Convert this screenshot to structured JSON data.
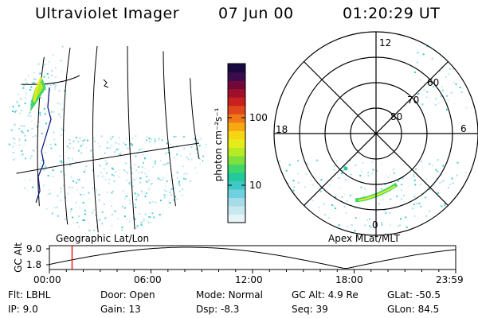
{
  "header": {
    "instrument": "Ultraviolet Imager",
    "date": "07 Jun 00",
    "time": "01:20:29 UT"
  },
  "left_panel": {
    "label": "Geographic Lat/Lon"
  },
  "right_panel": {
    "label": "Apex MLat/MLT",
    "mlt_labels": {
      "top": "12",
      "right": "6",
      "bottom": "0",
      "left": "18"
    },
    "lat_labels": [
      "60",
      "70",
      "80"
    ]
  },
  "colorbar": {
    "unit_label": "photon cm⁻²s⁻¹",
    "tick_100": "100",
    "tick_10": "10",
    "colors": [
      "#e6f3f7",
      "#c8e8f0",
      "#a6dce8",
      "#6fd1df",
      "#3fc9c6",
      "#22c99a",
      "#3fd66b",
      "#7fe03d",
      "#b6ea25",
      "#e5ec1a",
      "#f7d414",
      "#f7a812",
      "#f07818",
      "#e0481c",
      "#c8201e",
      "#a0102a",
      "#70083a",
      "#3a0c4a",
      "#180a40"
    ]
  },
  "timeline": {
    "ylabel": "GC Alt",
    "ytick_high": "9.0",
    "ytick_low": "1.8",
    "xticks": [
      "00:00",
      "06:00",
      "12:00",
      "18:00",
      "23:59"
    ],
    "current_time_marker_hours": 1.34
  },
  "footer": {
    "flt_label": "Flt:",
    "flt_value": "LBHL",
    "ip_label": "IP:",
    "ip_value": "9.0",
    "door_label": "Door:",
    "door_value": "Open",
    "gain_label": "Gain:",
    "gain_value": "13",
    "mode_label": "Mode:",
    "mode_value": "Normal",
    "dsp_label": "Dsp:",
    "dsp_value": "-8.3",
    "gcalt_label": "GC Alt:",
    "gcalt_value": "4.9 Re",
    "seq_label": "Seq:",
    "seq_value": "39",
    "glat_label": "GLat:",
    "glat_value": "-50.5",
    "glon_label": "GLon:",
    "glon_value": "84.5"
  },
  "accent_colors": {
    "marker": "#e0201c",
    "aurora_green": "#3fd66b",
    "aurora_yellow": "#e5ec1a",
    "speckle_cyan": "#a6dce8"
  }
}
